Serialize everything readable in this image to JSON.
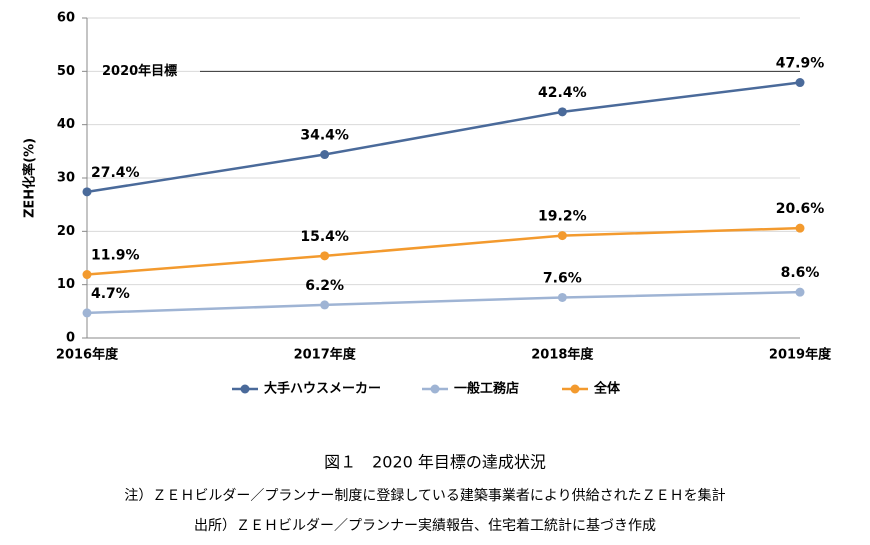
{
  "chart_data": {
    "type": "line",
    "y_label": "ZEH化率(%)",
    "categories": [
      "2016年度",
      "2017年度",
      "2018年度",
      "2019年度"
    ],
    "series": [
      {
        "name": "大手ハウスメーカー",
        "color": "#4a6a9a",
        "values": [
          27.4,
          34.4,
          42.4,
          47.9
        ],
        "value_labels": [
          "27.4%",
          "34.4%",
          "42.4%",
          "47.9%"
        ]
      },
      {
        "name": "一般工務店",
        "color": "#9fb4d4",
        "values": [
          4.7,
          6.2,
          7.6,
          8.6
        ],
        "value_labels": [
          "4.7%",
          "6.2%",
          "7.6%",
          "8.6%"
        ]
      },
      {
        "name": "全体",
        "color": "#f39a2e",
        "values": [
          11.9,
          15.4,
          19.2,
          20.6
        ],
        "value_labels": [
          "11.9%",
          "15.4%",
          "19.2%",
          "20.6%"
        ]
      }
    ],
    "target_line": {
      "value": 50,
      "label": "2020年目標"
    },
    "ylim": [
      0,
      60
    ],
    "yticks": [
      0,
      10,
      20,
      30,
      40,
      50,
      60
    ],
    "grid": true,
    "legend": "bottom",
    "caption": "図１　2020 年目標の達成状況",
    "note": "注）ＺＥＨビルダー／プランナー制度に登録している建築事業者により供給されたＺＥＨを集計",
    "source": "出所）ＺＥＨビルダー／プランナー実績報告、住宅着工統計に基づき作成"
  }
}
